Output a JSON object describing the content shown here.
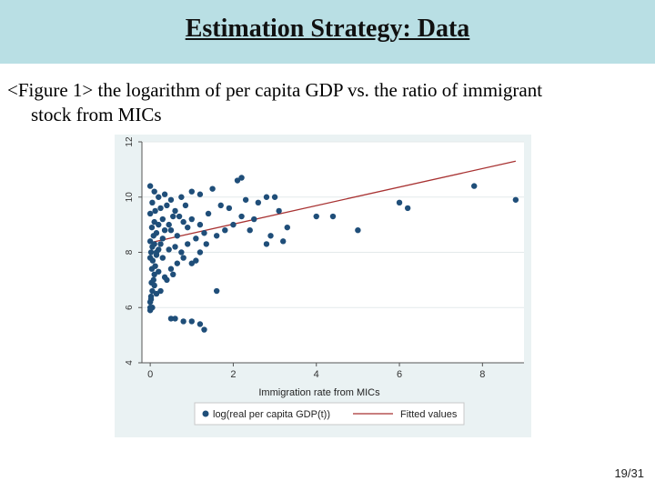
{
  "slide": {
    "title": "Estimation Strategy: Data",
    "caption_line1": "<Figure 1> the logarithm of per capita GDP vs. the ratio of immigrant",
    "caption_line2": "stock from MICs",
    "page_number": "19/31"
  },
  "colors": {
    "header_bg": "#b9dfe4",
    "chart_bg": "#eaf2f3",
    "point": "#1f4e79",
    "fit_line": "#a83232"
  },
  "chart_data": {
    "type": "scatter",
    "title": "",
    "xlabel": "Immigration rate from MICs",
    "ylabel": "",
    "xlim": [
      -0.2,
      9
    ],
    "ylim": [
      4,
      12
    ],
    "xticks": [
      "0",
      "2",
      "4",
      "6",
      "8"
    ],
    "yticks": [
      "4",
      "6",
      "8",
      "10",
      "12"
    ],
    "grid": true,
    "legend_position": "bottom",
    "series": [
      {
        "name": "log(real per capita GDP(t))",
        "kind": "scatter",
        "points": [
          [
            0.0,
            6.0
          ],
          [
            0.0,
            6.2
          ],
          [
            0.02,
            6.4
          ],
          [
            0.05,
            6.6
          ],
          [
            0.03,
            6.9
          ],
          [
            0.08,
            7.0
          ],
          [
            0.1,
            7.2
          ],
          [
            0.04,
            7.4
          ],
          [
            0.12,
            7.5
          ],
          [
            0.06,
            7.7
          ],
          [
            0.0,
            7.8
          ],
          [
            0.15,
            7.9
          ],
          [
            0.02,
            8.0
          ],
          [
            0.2,
            8.1
          ],
          [
            0.05,
            8.2
          ],
          [
            0.1,
            8.3
          ],
          [
            0.25,
            8.3
          ],
          [
            0.0,
            8.4
          ],
          [
            0.3,
            8.5
          ],
          [
            0.08,
            8.6
          ],
          [
            0.15,
            8.7
          ],
          [
            0.35,
            8.8
          ],
          [
            0.04,
            8.9
          ],
          [
            0.2,
            9.0
          ],
          [
            0.45,
            9.0
          ],
          [
            0.1,
            9.1
          ],
          [
            0.3,
            9.2
          ],
          [
            0.55,
            9.3
          ],
          [
            0.0,
            9.4
          ],
          [
            0.12,
            9.5
          ],
          [
            0.25,
            9.6
          ],
          [
            0.4,
            9.7
          ],
          [
            0.6,
            9.5
          ],
          [
            0.7,
            9.3
          ],
          [
            0.8,
            9.1
          ],
          [
            0.5,
            8.8
          ],
          [
            0.65,
            8.6
          ],
          [
            0.9,
            8.9
          ],
          [
            1.0,
            9.2
          ],
          [
            0.85,
            9.7
          ],
          [
            0.05,
            9.8
          ],
          [
            0.2,
            10.0
          ],
          [
            0.1,
            10.2
          ],
          [
            0.0,
            10.4
          ],
          [
            0.35,
            10.1
          ],
          [
            0.5,
            9.9
          ],
          [
            0.75,
            10.0
          ],
          [
            1.0,
            10.2
          ],
          [
            1.2,
            10.1
          ],
          [
            1.5,
            10.3
          ],
          [
            0.15,
            8.0
          ],
          [
            0.3,
            7.8
          ],
          [
            0.45,
            8.1
          ],
          [
            0.6,
            8.2
          ],
          [
            0.75,
            8.0
          ],
          [
            0.9,
            8.3
          ],
          [
            1.1,
            8.5
          ],
          [
            1.3,
            8.7
          ],
          [
            1.2,
            9.0
          ],
          [
            1.4,
            9.4
          ],
          [
            0.2,
            7.3
          ],
          [
            0.35,
            7.1
          ],
          [
            0.5,
            7.4
          ],
          [
            0.65,
            7.6
          ],
          [
            0.8,
            7.8
          ],
          [
            0.1,
            6.8
          ],
          [
            0.25,
            6.6
          ],
          [
            0.4,
            7.0
          ],
          [
            0.55,
            7.2
          ],
          [
            0.15,
            6.5
          ],
          [
            1.0,
            7.6
          ],
          [
            1.1,
            7.7
          ],
          [
            1.2,
            8.0
          ],
          [
            1.35,
            8.3
          ],
          [
            1.6,
            8.6
          ],
          [
            1.8,
            8.8
          ],
          [
            2.0,
            9.0
          ],
          [
            2.2,
            9.3
          ],
          [
            2.4,
            8.8
          ],
          [
            2.5,
            9.2
          ],
          [
            1.7,
            9.7
          ],
          [
            1.9,
            9.6
          ],
          [
            2.1,
            10.6
          ],
          [
            2.2,
            10.7
          ],
          [
            2.3,
            9.9
          ],
          [
            2.6,
            9.8
          ],
          [
            2.8,
            10.0
          ],
          [
            3.0,
            10.0
          ],
          [
            3.1,
            9.5
          ],
          [
            2.9,
            8.6
          ],
          [
            3.3,
            8.9
          ],
          [
            2.8,
            8.3
          ],
          [
            3.2,
            8.4
          ],
          [
            4.0,
            9.3
          ],
          [
            4.4,
            9.3
          ],
          [
            5.0,
            8.8
          ],
          [
            6.0,
            9.8
          ],
          [
            6.2,
            9.6
          ],
          [
            7.8,
            10.4
          ],
          [
            8.8,
            9.9
          ],
          [
            0.5,
            5.6
          ],
          [
            0.6,
            5.6
          ],
          [
            0.8,
            5.5
          ],
          [
            1.0,
            5.5
          ],
          [
            1.2,
            5.4
          ],
          [
            1.3,
            5.2
          ],
          [
            1.6,
            6.6
          ],
          [
            0.0,
            5.9
          ],
          [
            0.05,
            6.0
          ],
          [
            0.02,
            6.3
          ]
        ]
      },
      {
        "name": "Fitted values",
        "kind": "line",
        "points": [
          [
            0.0,
            8.35
          ],
          [
            8.8,
            11.3
          ]
        ]
      }
    ]
  }
}
